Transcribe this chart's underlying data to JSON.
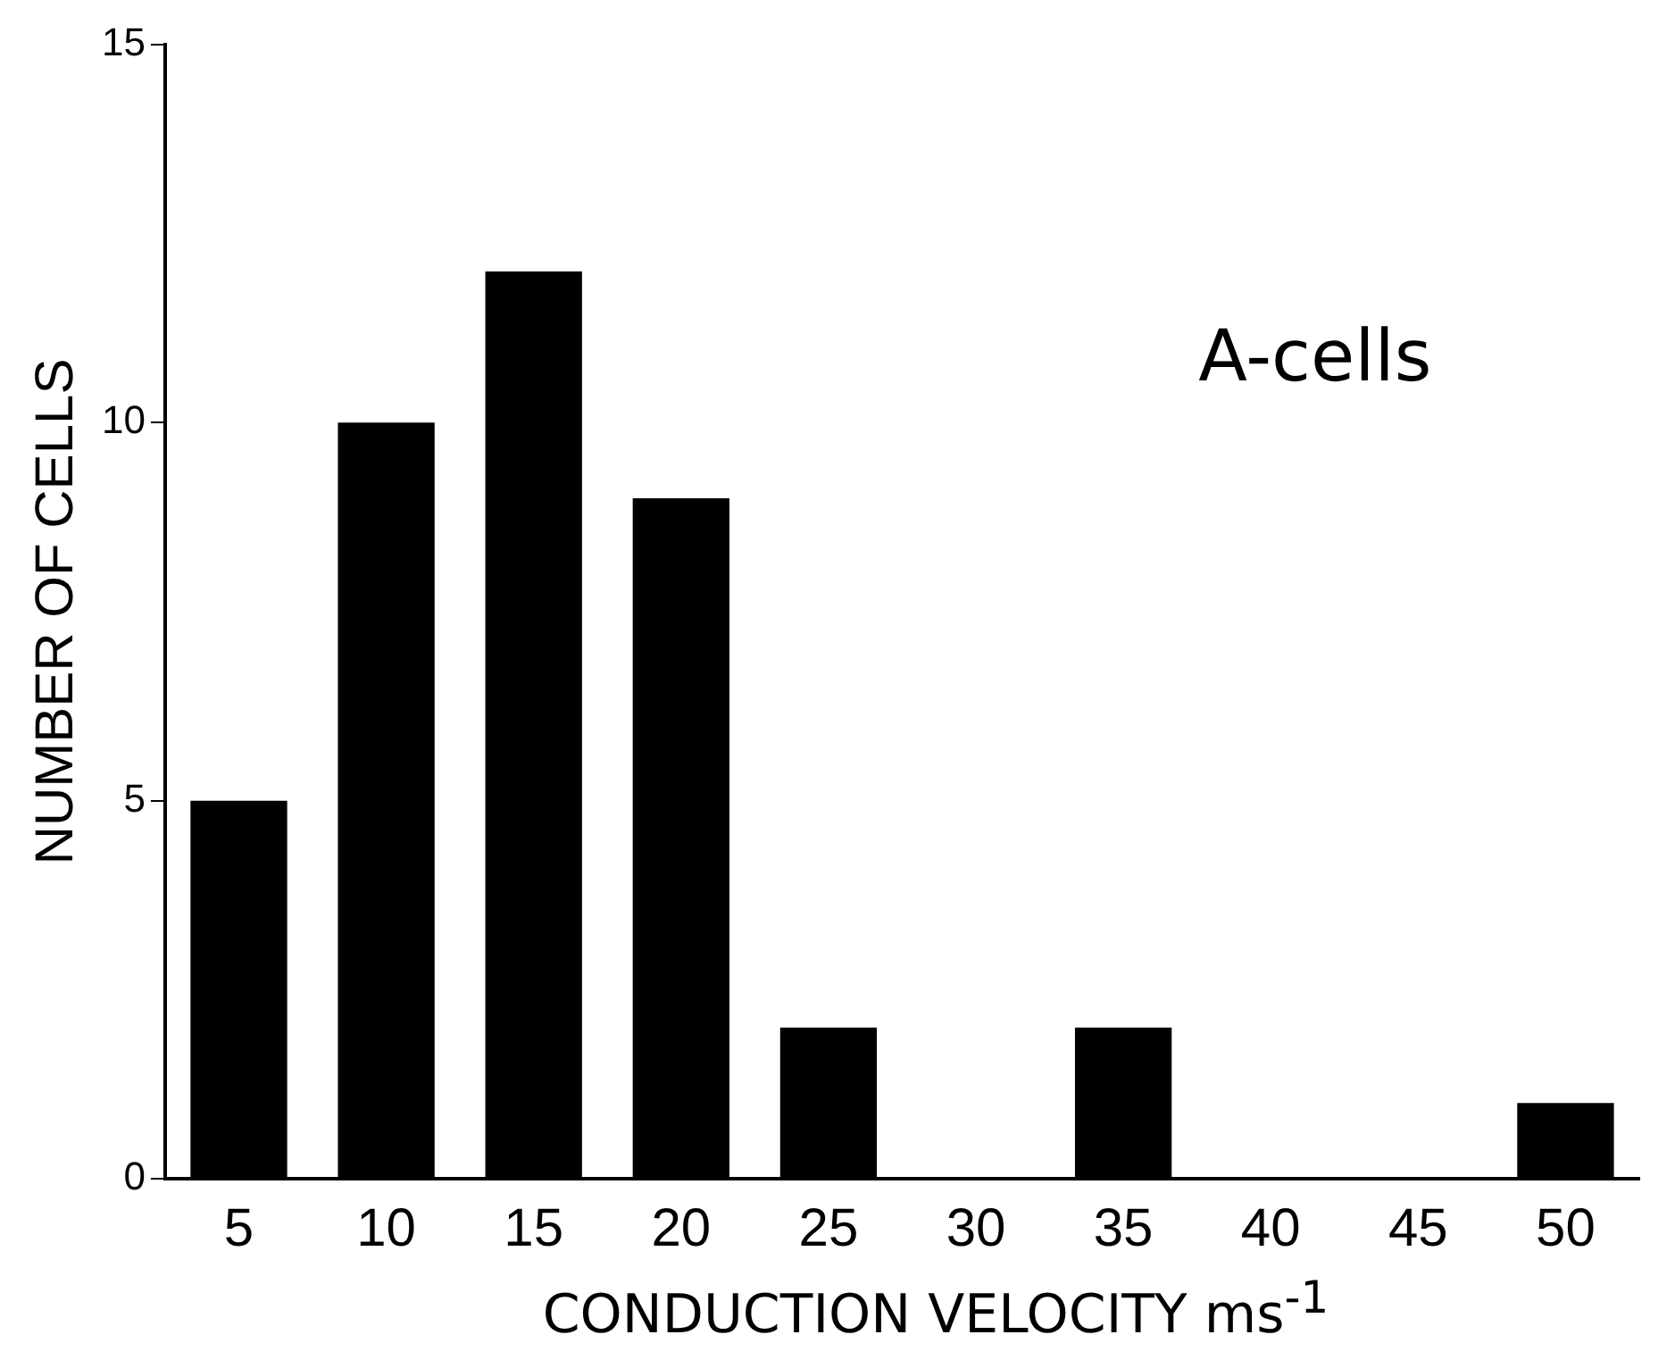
{
  "chart_data": {
    "type": "bar",
    "xlabel": "CONDUCTION VELOCITY ms$^{-1}$",
    "ylabel": "NUMBER OF CELLS",
    "annotations": [
      "A-cells"
    ],
    "categories": [
      "5",
      "10",
      "15",
      "20",
      "25",
      "30",
      "35",
      "40",
      "45",
      "50"
    ],
    "values": [
      5,
      10,
      12,
      9,
      2,
      0,
      2,
      0,
      0,
      1
    ],
    "color": "#000000",
    "ylim": [
      0,
      15
    ],
    "yticks": [
      0,
      5,
      10,
      15
    ],
    "grid": false,
    "legend": false
  }
}
